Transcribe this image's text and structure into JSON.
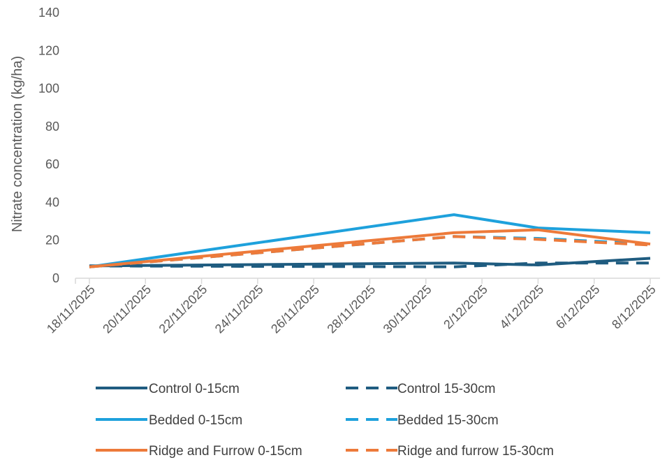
{
  "chart_data": {
    "type": "line",
    "title": "",
    "xlabel": "",
    "ylabel": "Nitrate concentration (kg/ha)",
    "ylim": [
      0,
      140
    ],
    "yticks": [
      0,
      20,
      40,
      60,
      80,
      100,
      120,
      140
    ],
    "xlim": [
      "18/11/2025",
      "8/12/2025"
    ],
    "xticks": [
      "18/11/2025",
      "20/11/2025",
      "22/11/2025",
      "24/11/2025",
      "26/11/2025",
      "28/11/2025",
      "30/11/2025",
      "2/12/2025",
      "4/12/2025",
      "6/12/2025",
      "8/12/2025"
    ],
    "grid": false,
    "legend_position": "bottom",
    "series": [
      {
        "name": "Control 0-15cm",
        "color": "#1f5c80",
        "dash": "solid",
        "points": [
          [
            "18/11/2025",
            6.5
          ],
          [
            "1/12/2025",
            8
          ],
          [
            "4/12/2025",
            7
          ],
          [
            "8/12/2025",
            10.5
          ]
        ]
      },
      {
        "name": "Control 15-30cm",
        "color": "#1f5c80",
        "dash": "dashed",
        "points": [
          [
            "18/11/2025",
            6.5
          ],
          [
            "1/12/2025",
            6
          ],
          [
            "4/12/2025",
            8
          ],
          [
            "8/12/2025",
            8
          ]
        ]
      },
      {
        "name": "Bedded 0-15cm",
        "color": "#1ea1dc",
        "dash": "solid",
        "points": [
          [
            "18/11/2025",
            6
          ],
          [
            "1/12/2025",
            33.5
          ],
          [
            "4/12/2025",
            26.5
          ],
          [
            "8/12/2025",
            24
          ]
        ]
      },
      {
        "name": "Bedded 15-30cm",
        "color": "#1ea1dc",
        "dash": "dashed",
        "points": [
          [
            "18/11/2025",
            6
          ],
          [
            "1/12/2025",
            22
          ],
          [
            "4/12/2025",
            21
          ],
          [
            "8/12/2025",
            18
          ]
        ]
      },
      {
        "name": "Ridge and Furrow 0-15cm",
        "color": "#ed7a3a",
        "dash": "solid",
        "points": [
          [
            "18/11/2025",
            6
          ],
          [
            "1/12/2025",
            24
          ],
          [
            "4/12/2025",
            25.5
          ],
          [
            "8/12/2025",
            18
          ]
        ]
      },
      {
        "name": "Ridge and furrow 15-30cm",
        "color": "#ed7a3a",
        "dash": "dashed",
        "points": [
          [
            "18/11/2025",
            6
          ],
          [
            "1/12/2025",
            22
          ],
          [
            "4/12/2025",
            20.5
          ],
          [
            "8/12/2025",
            17.5
          ]
        ]
      }
    ]
  }
}
